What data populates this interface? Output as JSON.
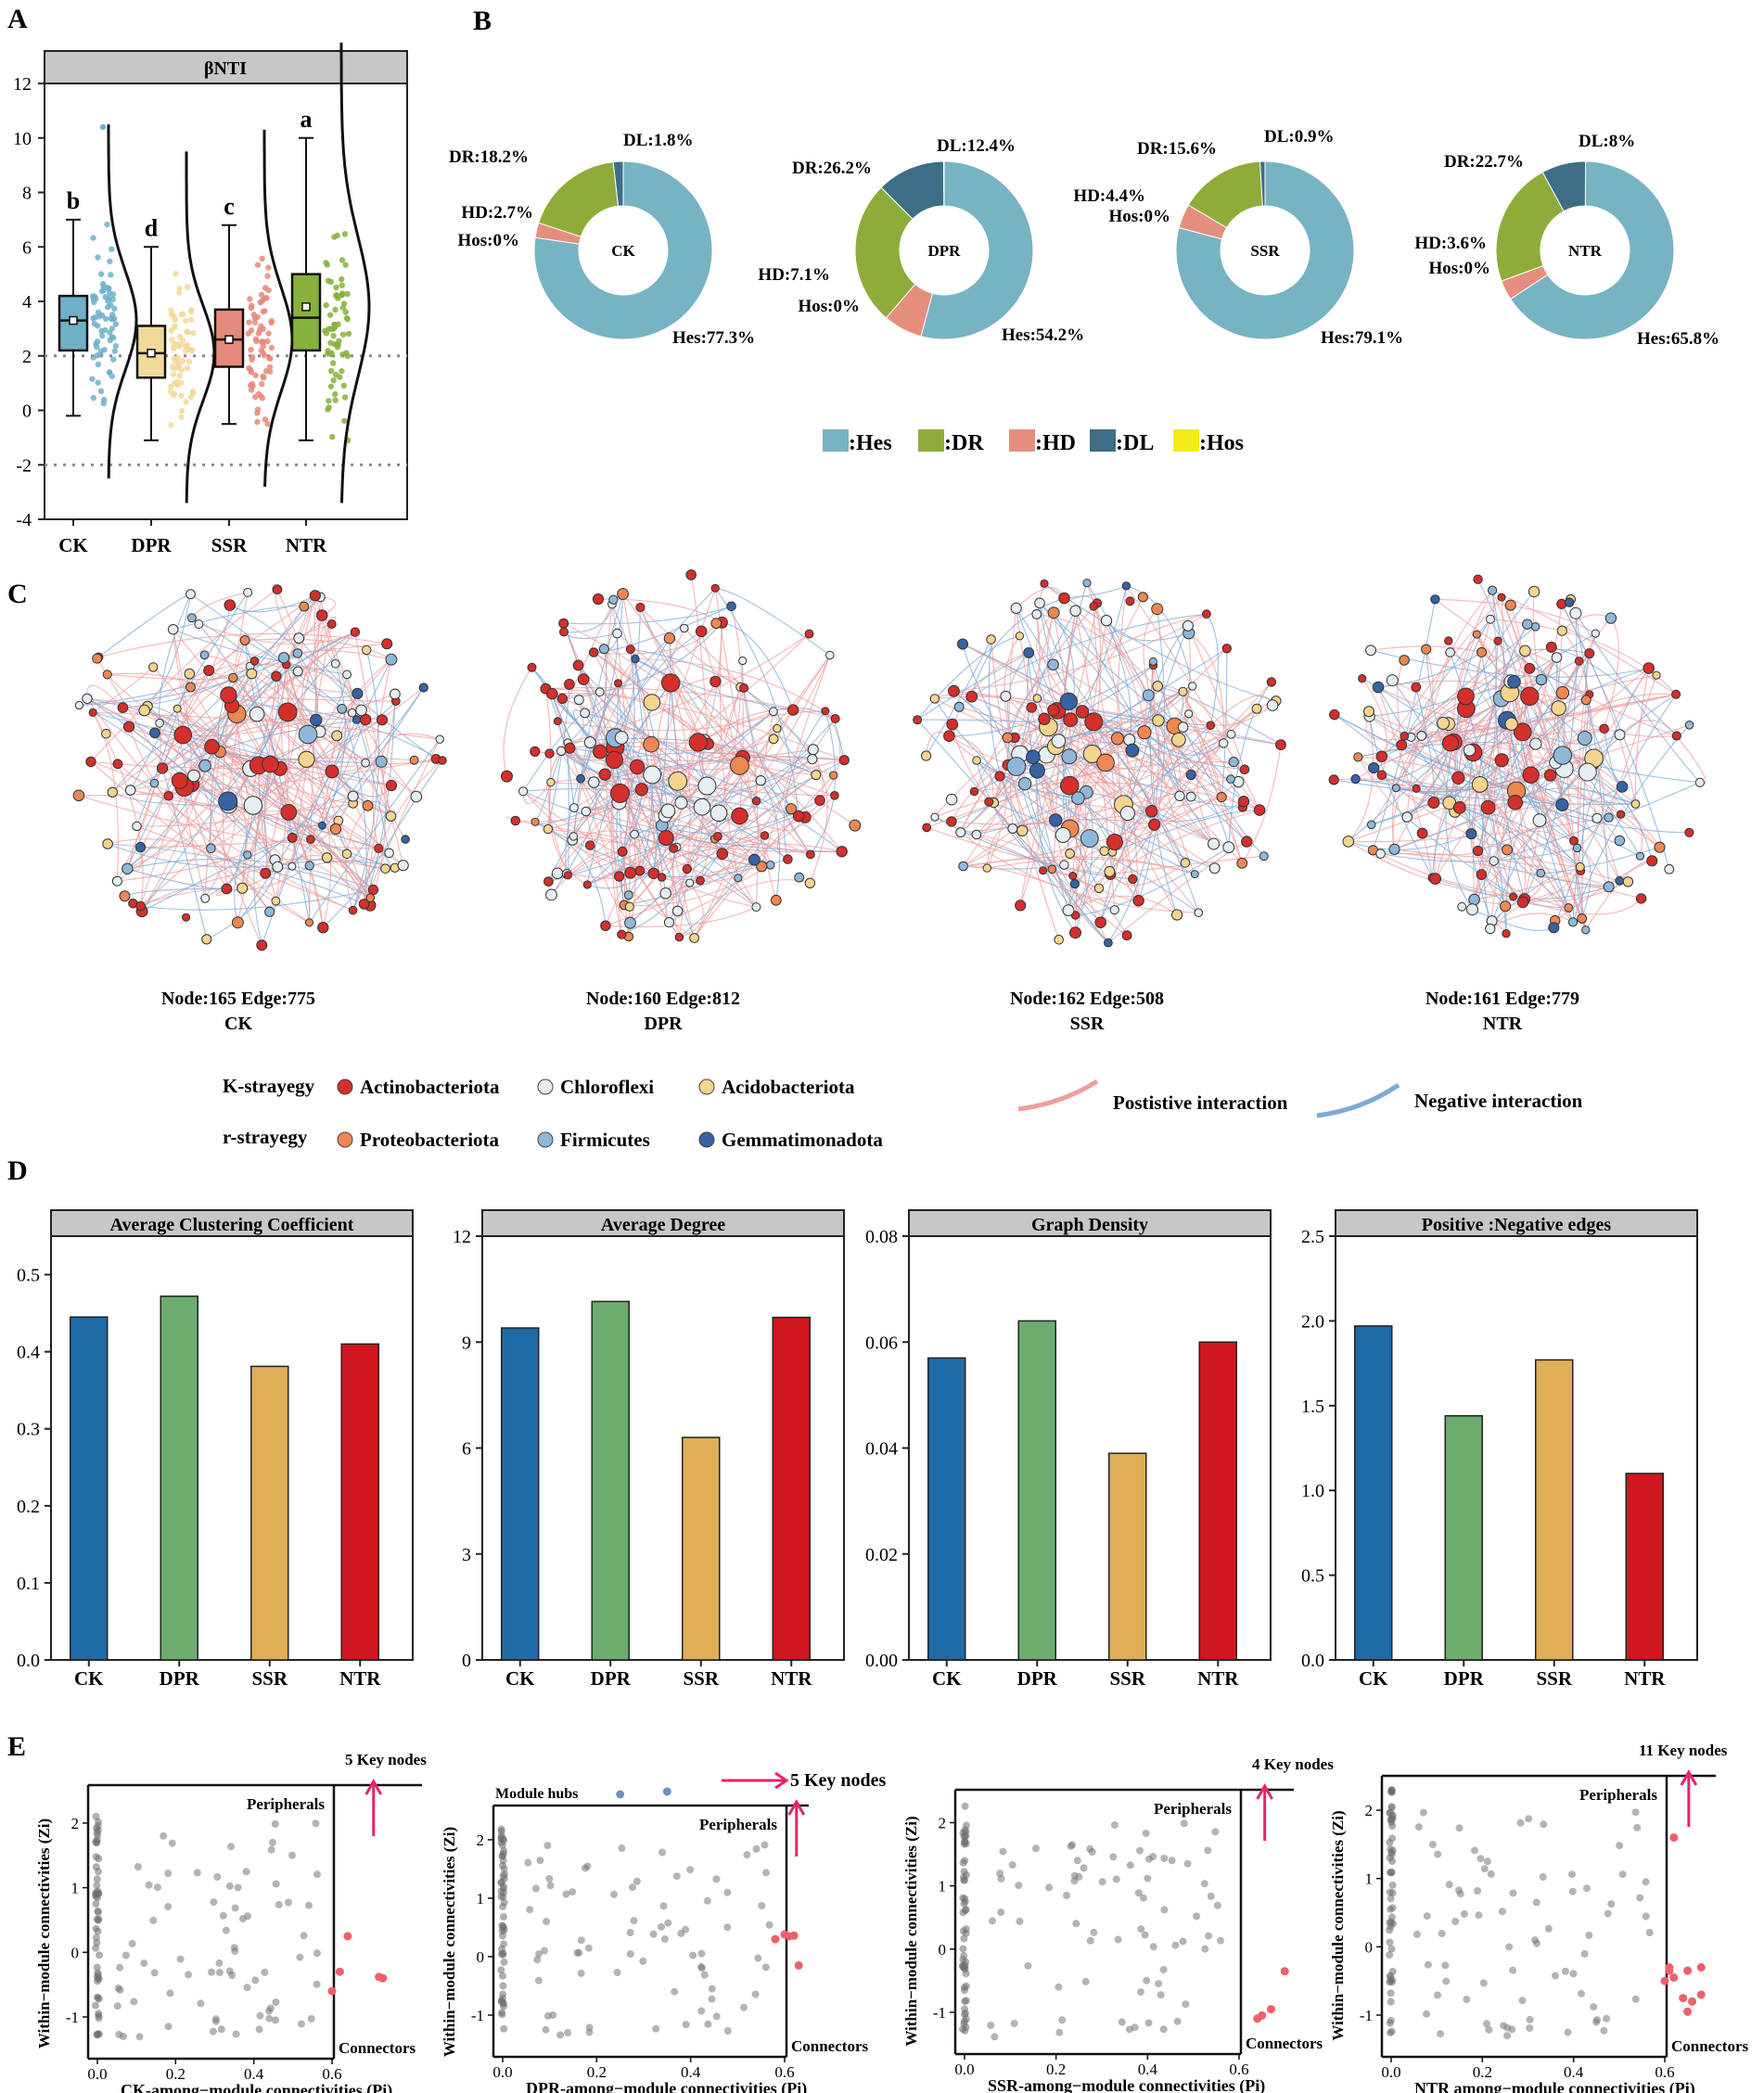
{
  "panel_letters": [
    "A",
    "B",
    "C",
    "D",
    "E"
  ],
  "colors": {
    "CK": "#1f6aa5",
    "DPR": "#6aad6e",
    "SSR": "#dfae56",
    "NTR": "#d0161f",
    "box_CK": "#6fb0c8",
    "box_DPR": "#f2d99a",
    "box_SSR": "#e58a7a",
    "box_NTR": "#86b13c",
    "Hes": "#77b3c3",
    "DR": "#8fac3a",
    "HD": "#e58e7d",
    "DL": "#3d6e86",
    "Hos": "#f4ea1a",
    "Actinobacteriota": "#d42f2a",
    "Chloroflexi": "#e6eef2",
    "Acidobacteriota": "#f5d58e",
    "Proteobacteriota": "#ee8751",
    "Firmicutes": "#8eb8da",
    "Gemmatimonadota": "#3563a4",
    "positive_edge": "#ee9ea0",
    "negative_edge": "#7fa9d6",
    "key_node": "#ef5f6c",
    "pink_arrow": "#e8226f"
  },
  "chart_data": [
    {
      "id": "A",
      "type": "box",
      "title": "βNTI",
      "categories": [
        "CK",
        "DPR",
        "SSR",
        "NTR"
      ],
      "ylim": [
        -4,
        12
      ],
      "yticks": [
        "-4",
        "-2",
        "0",
        "2",
        "4",
        "6",
        "8",
        "10",
        "12"
      ],
      "reference_lines": [
        2,
        -2
      ],
      "letters": [
        "b",
        "d",
        "c",
        "a"
      ],
      "stats": [
        {
          "q1": 2.2,
          "median": 3.3,
          "q3": 4.2,
          "mean": 3.3,
          "min": -0.2,
          "max": 7.0,
          "outlier": 10.4
        },
        {
          "q1": 1.2,
          "median": 2.1,
          "q3": 3.1,
          "mean": 2.1,
          "min": -1.1,
          "max": 6.0
        },
        {
          "q1": 1.6,
          "median": 2.6,
          "q3": 3.7,
          "mean": 2.6,
          "min": -0.5,
          "max": 6.8
        },
        {
          "q1": 2.2,
          "median": 3.4,
          "q3": 5.0,
          "mean": 3.8,
          "min": -1.1,
          "max": 10.0
        }
      ]
    },
    {
      "id": "B",
      "type": "pie",
      "groups": [
        {
          "name": "CK",
          "slices": [
            {
              "key": "Hes",
              "value": 77.3,
              "label": "Hes:77.3%"
            },
            {
              "key": "HD",
              "value": 2.7,
              "label": "HD:2.7%"
            },
            {
              "key": "DR",
              "value": 18.2,
              "label": "DR:18.2%"
            },
            {
              "key": "DL",
              "value": 1.8,
              "label": "DL:1.8%"
            },
            {
              "key": "Hos",
              "value": 0,
              "label": "Hos:0%"
            }
          ]
        },
        {
          "name": "DPR",
          "slices": [
            {
              "key": "Hes",
              "value": 54.2,
              "label": "Hes:54.2%"
            },
            {
              "key": "HD",
              "value": 7.1,
              "label": "HD:7.1%"
            },
            {
              "key": "DR",
              "value": 26.2,
              "label": "DR:26.2%"
            },
            {
              "key": "DL",
              "value": 12.4,
              "label": "DL:12.4%"
            },
            {
              "key": "Hos",
              "value": 0,
              "label": "Hos:0%"
            }
          ]
        },
        {
          "name": "SSR",
          "slices": [
            {
              "key": "Hes",
              "value": 79.1,
              "label": "Hes:79.1%"
            },
            {
              "key": "HD",
              "value": 4.4,
              "label": "HD:4.4%"
            },
            {
              "key": "DR",
              "value": 15.6,
              "label": "DR:15.6%"
            },
            {
              "key": "DL",
              "value": 0.9,
              "label": "DL:0.9%"
            },
            {
              "key": "Hos",
              "value": 0,
              "label": "Hos:0%"
            }
          ]
        },
        {
          "name": "NTR",
          "slices": [
            {
              "key": "Hes",
              "value": 65.8,
              "label": "Hes:65.8%"
            },
            {
              "key": "HD",
              "value": 3.6,
              "label": "HD:3.6%"
            },
            {
              "key": "DR",
              "value": 22.7,
              "label": "DR:22.7%"
            },
            {
              "key": "DL",
              "value": 8,
              "label": "DL:8%"
            },
            {
              "key": "Hos",
              "value": 0,
              "label": "Hos:0%"
            }
          ]
        }
      ],
      "legend": [
        ":Hes",
        ":DR",
        ":HD",
        ":DL",
        ":Hos"
      ]
    },
    {
      "id": "C",
      "type": "network",
      "networks": [
        {
          "name": "CK",
          "caption": "Node:165 Edge:775"
        },
        {
          "name": "DPR",
          "caption": "Node:160 Edge:812"
        },
        {
          "name": "SSR",
          "caption": "Node:162 Edge:508"
        },
        {
          "name": "NTR",
          "caption": "Node:161 Edge:779"
        }
      ],
      "legend": {
        "k_label": "K-strayegy",
        "r_label": "r-strayegy",
        "k_taxa": [
          "Actinobacteriota",
          "Chloroflexi",
          "Acidobacteriota"
        ],
        "r_taxa": [
          "Proteobacteriota",
          "Firmicutes",
          "Gemmatimonadota"
        ],
        "positive": "Postistive interaction",
        "negative": "Negative interaction"
      }
    },
    {
      "id": "D",
      "type": "bar",
      "categories": [
        "CK",
        "DPR",
        "SSR",
        "NTR"
      ],
      "panels": [
        {
          "title": "Average Clustering Coefficient",
          "values": [
            0.445,
            0.472,
            0.381,
            0.41
          ],
          "ylim": [
            0,
            0.55
          ],
          "ticks": [
            0,
            0.1,
            0.2,
            0.3,
            0.4,
            0.5
          ],
          "tick_labels": [
            "0.0",
            "0.1",
            "0.2",
            "0.3",
            "0.4",
            "0.5"
          ]
        },
        {
          "title": "Average Degree",
          "values": [
            9.4,
            10.15,
            6.3,
            9.7
          ],
          "ylim": [
            0,
            12
          ],
          "ticks": [
            0,
            3,
            6,
            9,
            12
          ],
          "tick_labels": [
            "0",
            "3",
            "6",
            "9",
            "12"
          ]
        },
        {
          "title": "Graph Density",
          "values": [
            0.057,
            0.064,
            0.039,
            0.06
          ],
          "ylim": [
            0,
            0.08
          ],
          "ticks": [
            0,
            0.02,
            0.04,
            0.06,
            0.08
          ],
          "tick_labels": [
            "0.00",
            "0.02",
            "0.04",
            "0.06",
            "0.08"
          ]
        },
        {
          "title": "Positive :Negative edges",
          "values": [
            1.97,
            1.44,
            1.77,
            1.1
          ],
          "ylim": [
            0,
            2.5
          ],
          "ticks": [
            0,
            0.5,
            1,
            1.5,
            2,
            2.5
          ],
          "tick_labels": [
            "0.0",
            "0.5",
            "1.0",
            "1.5",
            "2.0",
            "2.5"
          ]
        }
      ]
    },
    {
      "id": "E",
      "type": "scatter",
      "ylabel": "Within−module connectivities (Zi)",
      "zones": {
        "peripherals": "Peripherals",
        "connectors": "Connectors",
        "module_hubs": "Module hubs"
      },
      "panels": [
        {
          "xlabel": "CK-among−module connectivities (Pi)",
          "key_label": "5 Key nodes",
          "xticks": [
            "0.0",
            "0.2",
            "0.4",
            "0.6"
          ],
          "yticks": [
            "2",
            "1",
            "0",
            "-1"
          ],
          "hubs": [],
          "key_points": [
            [
              0.64,
              0.25
            ],
            [
              0.62,
              -0.3
            ],
            [
              0.72,
              -0.38
            ],
            [
              0.73,
              -0.4
            ],
            [
              0.6,
              -0.6
            ]
          ]
        },
        {
          "xlabel": "DPR-among−module connectivities (Pi)",
          "key_label": "5 Key nodes",
          "xticks": [
            "0.0",
            "0.2",
            "0.4",
            "0.6"
          ],
          "yticks": [
            "2",
            "1",
            "0",
            "-1"
          ],
          "hubs": [
            [
              0.25,
              2.7
            ],
            [
              0.35,
              2.8
            ]
          ],
          "key_points": [
            [
              0.61,
              0.35
            ],
            [
              0.63,
              -0.15
            ],
            [
              0.6,
              0.38
            ],
            [
              0.58,
              0.3
            ],
            [
              0.62,
              0.36
            ]
          ]
        },
        {
          "xlabel": "SSR-among−module connectivities (Pi)",
          "key_label": "4 Key nodes",
          "xticks": [
            "0.0",
            "0.2",
            "0.4",
            "0.6"
          ],
          "yticks": [
            "2",
            "1",
            "0",
            "-1"
          ],
          "hubs": [],
          "key_points": [
            [
              0.7,
              -0.35
            ],
            [
              0.67,
              -0.95
            ],
            [
              0.65,
              -1.05
            ],
            [
              0.64,
              -1.1
            ]
          ]
        },
        {
          "xlabel": "NTR  among−module connectivities (Pi)",
          "key_label": "11 Key nodes",
          "xticks": [
            "0.0",
            "0.2",
            "0.4",
            "0.6"
          ],
          "yticks": [
            "2",
            "1",
            "0",
            "-1"
          ],
          "hubs": [],
          "key_points": [
            [
              0.62,
              1.6
            ],
            [
              0.61,
              -0.3
            ],
            [
              0.62,
              -0.45
            ],
            [
              0.65,
              -0.35
            ],
            [
              0.68,
              -0.3
            ],
            [
              0.64,
              -0.75
            ],
            [
              0.66,
              -0.8
            ],
            [
              0.68,
              -0.7
            ],
            [
              0.65,
              -0.95
            ],
            [
              0.6,
              -0.5
            ],
            [
              0.61,
              -0.35
            ]
          ]
        }
      ]
    }
  ]
}
